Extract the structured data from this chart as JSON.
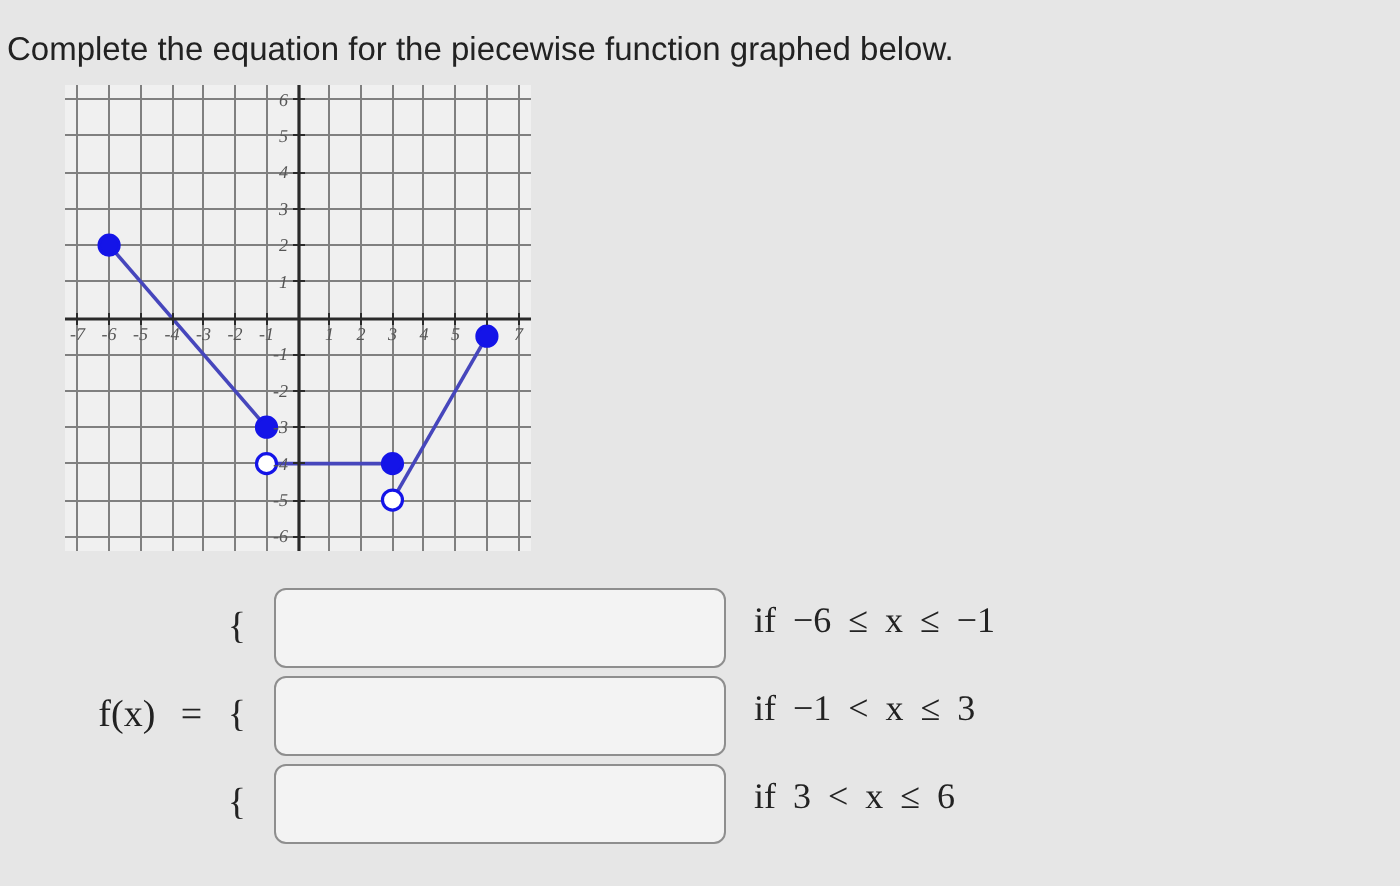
{
  "chart_data": {
    "type": "line",
    "title": "Complete the equation for the piecewise function graphed below.",
    "xlim": [
      -7.4,
      7.4
    ],
    "ylim": [
      -6.4,
      6.4
    ],
    "xticks": [
      -7,
      -6,
      -5,
      -4,
      -3,
      -2,
      -1,
      {
        "value": 0,
        "label": null
      },
      1,
      2,
      3,
      4,
      5,
      {
        "value": 6,
        "label": null
      },
      7
    ],
    "yticks": [
      -6,
      -5,
      -4,
      -3,
      -2,
      -1,
      {
        "value": 0,
        "label": null
      },
      1,
      2,
      3,
      4,
      5,
      6
    ],
    "grid": true,
    "series": [
      {
        "color": "#4646bc",
        "x": [
          -6,
          -1
        ],
        "values": [
          2,
          -3
        ]
      },
      {
        "color": "#4646bc",
        "x": [
          -1,
          3
        ],
        "values": [
          -4,
          -4
        ]
      },
      {
        "color": "#4646bc",
        "x": [
          3,
          6
        ],
        "values": [
          -5,
          -0.5
        ]
      },
      {
        "type": "scatter",
        "marker": "circle",
        "color": "#1414e8",
        "x": [
          -6,
          -1,
          3,
          6
        ],
        "values": [
          2,
          -3,
          -4,
          -0.5
        ]
      },
      {
        "type": "scatter",
        "marker": "circle",
        "color": "#ffffff",
        "x": [
          -1,
          3
        ],
        "values": [
          -4,
          -5
        ]
      }
    ],
    "annotations": [
      "{",
      "if −6 ≤ x ≤ −1",
      "f(x) = {",
      "if −1 < x ≤ 3",
      "{",
      "if 3 < x ≤ 6"
    ]
  }
}
